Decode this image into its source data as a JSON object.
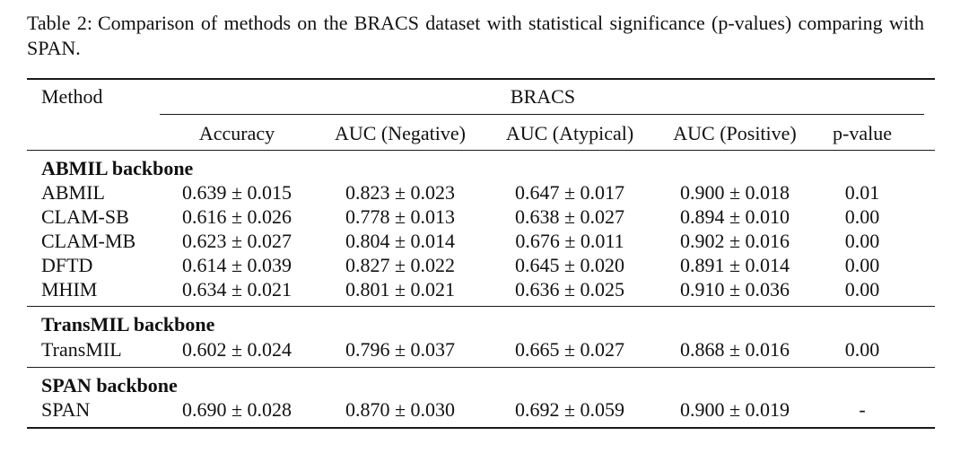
{
  "caption": {
    "label": "Table 2:",
    "text": "Comparison of methods on the BRACS dataset with statistical significance (p-values) comparing with SPAN."
  },
  "table": {
    "method_header": "Method",
    "group_header": "BRACS",
    "columns": [
      "Accuracy",
      "AUC (Negative)",
      "AUC (Atypical)",
      "AUC (Positive)",
      "p-value"
    ],
    "sections": [
      {
        "title": "ABMIL backbone",
        "rows": [
          {
            "method": "ABMIL",
            "values": [
              "0.639 ± 0.015",
              "0.823 ± 0.023",
              "0.647 ± 0.017",
              "0.900 ± 0.018",
              "0.01"
            ]
          },
          {
            "method": "CLAM-SB",
            "values": [
              "0.616 ± 0.026",
              "0.778 ± 0.013",
              "0.638 ± 0.027",
              "0.894 ± 0.010",
              "0.00"
            ]
          },
          {
            "method": "CLAM-MB",
            "values": [
              "0.623 ± 0.027",
              "0.804 ± 0.014",
              "0.676 ± 0.011",
              "0.902 ± 0.016",
              "0.00"
            ]
          },
          {
            "method": "DFTD",
            "values": [
              "0.614 ± 0.039",
              "0.827 ± 0.022",
              "0.645 ± 0.020",
              "0.891 ± 0.014",
              "0.00"
            ]
          },
          {
            "method": "MHIM",
            "values": [
              "0.634 ± 0.021",
              "0.801 ± 0.021",
              "0.636 ± 0.025",
              "0.910 ± 0.036",
              "0.00"
            ]
          }
        ]
      },
      {
        "title": "TransMIL backbone",
        "rows": [
          {
            "method": "TransMIL",
            "values": [
              "0.602 ± 0.024",
              "0.796 ± 0.037",
              "0.665 ± 0.027",
              "0.868 ± 0.016",
              "0.00"
            ]
          }
        ]
      },
      {
        "title": "SPAN backbone",
        "rows": [
          {
            "method": "SPAN",
            "values": [
              "0.690 ± 0.028",
              "0.870 ± 0.030",
              "0.692 ± 0.059",
              "0.900 ± 0.019",
              "-"
            ]
          }
        ]
      }
    ]
  }
}
